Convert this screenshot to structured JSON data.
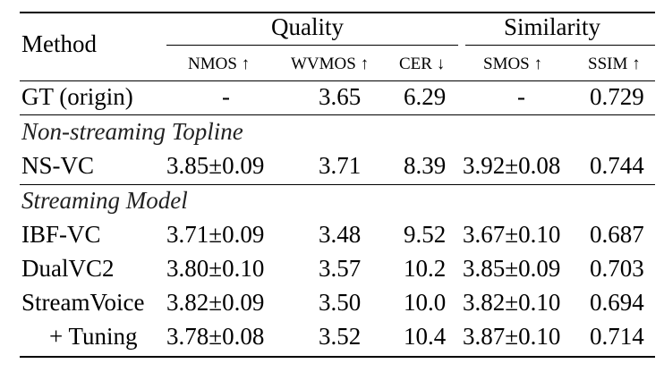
{
  "table": {
    "header": {
      "method": "Method",
      "groups": {
        "quality": "Quality",
        "similarity": "Similarity"
      },
      "subcolumns": [
        "NMOS ↑",
        "WVMOS ↑",
        "CER ↓",
        "SMOS ↑",
        "SSIM ↑"
      ]
    },
    "gt_row": [
      "GT (origin)",
      "-",
      "3.65",
      "6.29",
      "-",
      "0.729"
    ],
    "sections": [
      {
        "title": "Non-streaming Topline",
        "rows": [
          [
            "NS-VC",
            "3.85±0.09",
            "3.71",
            "8.39",
            "3.92±0.08",
            "0.744"
          ]
        ]
      },
      {
        "title": "Streaming Model",
        "rows": [
          [
            "IBF-VC",
            "3.71±0.09",
            "3.48",
            "9.52",
            "3.67±0.10",
            "0.687"
          ],
          [
            "DualVC2",
            "3.80±0.10",
            "3.57",
            "10.2",
            "3.85±0.09",
            "0.703"
          ],
          [
            "StreamVoice",
            "3.82±0.09",
            "3.50",
            "10.0",
            "3.82±0.10",
            "0.694"
          ],
          [
            "+ Tuning",
            "3.78±0.08",
            "3.52",
            "10.4",
            "3.87±0.10",
            "0.714"
          ]
        ]
      }
    ]
  }
}
